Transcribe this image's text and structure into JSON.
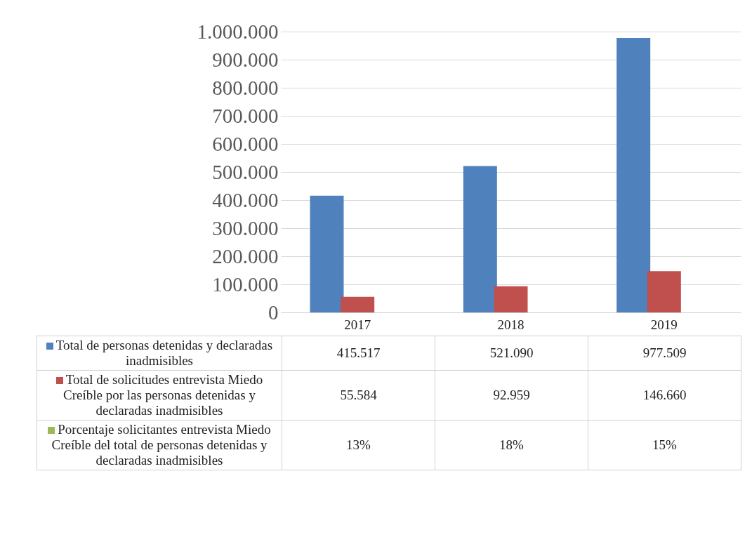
{
  "chart_data": {
    "type": "bar",
    "categories": [
      "2017",
      "2018",
      "2019"
    ],
    "series": [
      {
        "name": "Total de personas detenidas y declaradas inadmisibles",
        "color": "#4f81bd",
        "values": [
          415517,
          521090,
          977509
        ],
        "value_labels": [
          "415.517",
          "521.090",
          "977.509"
        ]
      },
      {
        "name": "Total de solicitudes entrevista Miedo Creíble por las personas detenidas y declaradas inadmisibles",
        "color": "#c0504d",
        "values": [
          55584,
          92959,
          146660
        ],
        "value_labels": [
          "55.584",
          "92.959",
          "146.660"
        ]
      },
      {
        "name": "Porcentaje solicitantes entrevista Miedo Creíble del total de personas detenidas y declaradas inadmisibles",
        "color": "#9bbb59",
        "values": [
          13,
          18,
          15
        ],
        "value_labels": [
          "13%",
          "18%",
          "15%"
        ]
      }
    ],
    "ylim": [
      0,
      1000000
    ],
    "yticks": [
      0,
      {
        "value": 100000,
        "label": "100.000"
      },
      {
        "value": 200000,
        "label": "200.000"
      },
      {
        "value": 300000,
        "label": "300.000"
      },
      {
        "value": 400000,
        "label": "400.000"
      },
      {
        "value": 500000,
        "label": "500.000"
      },
      {
        "value": 600000,
        "label": "600.000"
      },
      {
        "value": 700000,
        "label": "700.000"
      },
      {
        "value": 800000,
        "label": "800.000"
      },
      {
        "value": 900000,
        "label": "900.000"
      },
      {
        "value": 1000000,
        "label": "1.000.000"
      }
    ],
    "grid": "y",
    "legend": "bottom"
  }
}
